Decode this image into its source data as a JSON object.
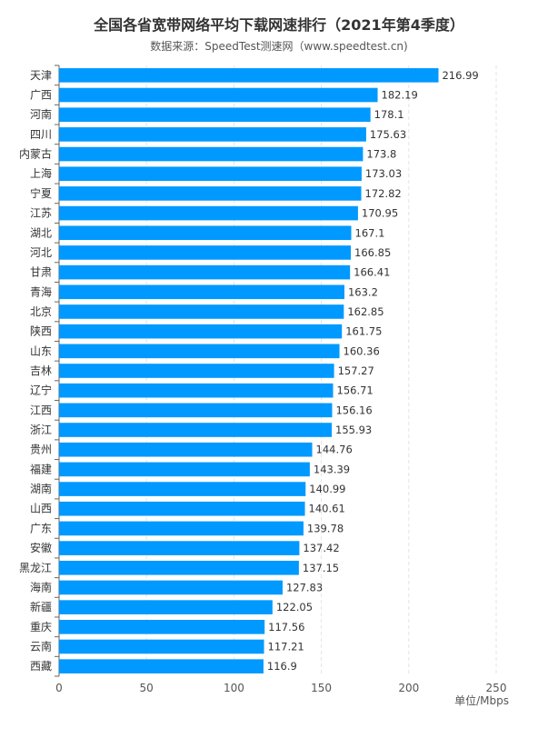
{
  "chart_data": {
    "type": "bar",
    "orientation": "horizontal",
    "title": "全国各省宽带网络平均下载网速排行（2021年第4季度）",
    "subtitle": "数据来源：SpeedTest测速网（www.speedtest.cn)",
    "unit_label": "单位/Mbps",
    "xlim": [
      0,
      250
    ],
    "xticks": [
      0,
      50,
      100,
      150,
      200,
      250
    ],
    "grid": true,
    "bar_color": "#0099ff",
    "categories": [
      "天津",
      "广西",
      "河南",
      "四川",
      "内蒙古",
      "上海",
      "宁夏",
      "江苏",
      "湖北",
      "河北",
      "甘肃",
      "青海",
      "北京",
      "陕西",
      "山东",
      "吉林",
      "辽宁",
      "江西",
      "浙江",
      "贵州",
      "福建",
      "湖南",
      "山西",
      "广东",
      "安徽",
      "黑龙江",
      "海南",
      "新疆",
      "重庆",
      "云南",
      "西藏"
    ],
    "value_labels": [
      "216.99",
      "182.19",
      "178.1",
      "175.63",
      "173.8",
      "173.03",
      "172.82",
      "170.95",
      "167.1",
      "166.85",
      "166.41",
      "163.2",
      "162.85",
      "161.75",
      "160.36",
      "157.27",
      "156.71",
      "156.16",
      "155.93",
      "144.76",
      "143.39",
      "140.99",
      "140.61",
      "139.78",
      "137.42",
      "137.15",
      "127.83",
      "122.05",
      "117.56",
      "117.21",
      "116.9"
    ],
    "values": [
      216.99,
      182.19,
      178.1,
      175.63,
      173.8,
      173.03,
      172.82,
      170.95,
      167.1,
      166.85,
      166.41,
      163.2,
      162.85,
      161.75,
      160.36,
      157.27,
      156.71,
      156.16,
      155.93,
      144.76,
      143.39,
      140.99,
      140.61,
      139.78,
      137.42,
      137.15,
      127.83,
      122.05,
      117.56,
      117.21,
      116.9
    ]
  }
}
